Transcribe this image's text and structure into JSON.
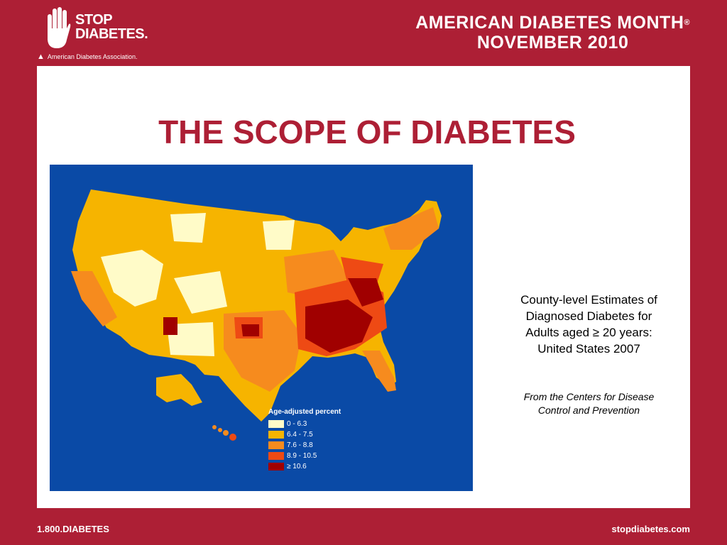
{
  "header": {
    "logo": {
      "stop_text": "STOP",
      "diabetes_text": "DIABETES.",
      "org_text": "American Diabetes Association."
    },
    "month_line1": "AMERICAN DIABETES MONTH",
    "registered": "®",
    "month_line2": "NOVEMBER 2010"
  },
  "slide": {
    "title": "THE SCOPE OF DIABETES",
    "caption_lines": [
      "County-level Estimates of",
      "Diagnosed Diabetes for",
      "Adults aged ≥ 20 years:",
      "United States 2007"
    ],
    "source_lines": [
      "From the Centers for Disease",
      "Control and Prevention"
    ]
  },
  "map": {
    "legend_title": "Age-adjusted percent",
    "legend": [
      {
        "label": "0 - 6.3",
        "color": "#fffbc8"
      },
      {
        "label": "6.4 - 7.5",
        "color": "#f6b400"
      },
      {
        "label": "7.6 - 8.8",
        "color": "#f68b1e"
      },
      {
        "label": "8.9 - 10.5",
        "color": "#ee4a14"
      },
      {
        "label": "≥ 10.6",
        "color": "#a00000"
      }
    ]
  },
  "footer": {
    "phone": "1.800.DIABETES",
    "website": "stopdiabetes.com"
  }
}
